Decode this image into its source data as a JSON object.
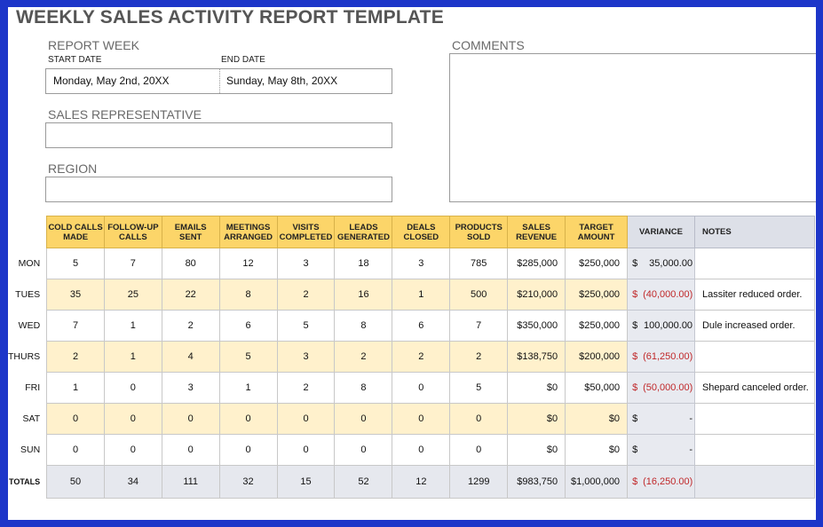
{
  "title": "WEEKLY SALES ACTIVITY REPORT TEMPLATE",
  "report_week": {
    "label": "REPORT WEEK",
    "start_label": "START DATE",
    "end_label": "END DATE",
    "start_value": "Monday, May 2nd, 20XX",
    "end_value": "Sunday, May 8th, 20XX"
  },
  "sales_rep": {
    "label": "SALES REPRESENTATIVE",
    "value": ""
  },
  "region": {
    "label": "REGION",
    "value": ""
  },
  "comments": {
    "label": "COMMENTS",
    "value": ""
  },
  "table": {
    "headers": {
      "cold_calls": "COLD CALLS MADE",
      "follow_up": "FOLLOW-UP CALLS",
      "emails": "EMAILS SENT",
      "meetings": "MEETINGS ARRANGED",
      "visits": "VISITS COMPLETED",
      "leads": "LEADS GENERATED",
      "deals": "DEALS CLOSED",
      "products": "PRODUCTS SOLD",
      "revenue": "SALES REVENUE",
      "target": "TARGET AMOUNT",
      "variance": "VARIANCE",
      "notes": "NOTES"
    },
    "rows": [
      {
        "day": "MON",
        "cold_calls": "5",
        "follow_up": "7",
        "emails": "80",
        "meetings": "12",
        "visits": "3",
        "leads": "18",
        "deals": "3",
        "products": "785",
        "revenue": "$285,000",
        "target": "$250,000",
        "var_cur": "$",
        "var_amt": "35,000.00",
        "negative": false,
        "notes": ""
      },
      {
        "day": "TUES",
        "cold_calls": "35",
        "follow_up": "25",
        "emails": "22",
        "meetings": "8",
        "visits": "2",
        "leads": "16",
        "deals": "1",
        "products": "500",
        "revenue": "$210,000",
        "target": "$250,000",
        "var_cur": "$",
        "var_amt": "(40,000.00)",
        "negative": true,
        "notes": "Lassiter reduced order."
      },
      {
        "day": "WED",
        "cold_calls": "7",
        "follow_up": "1",
        "emails": "2",
        "meetings": "6",
        "visits": "5",
        "leads": "8",
        "deals": "6",
        "products": "7",
        "revenue": "$350,000",
        "target": "$250,000",
        "var_cur": "$",
        "var_amt": "100,000.00",
        "negative": false,
        "notes": "Dule increased order."
      },
      {
        "day": "THURS",
        "cold_calls": "2",
        "follow_up": "1",
        "emails": "4",
        "meetings": "5",
        "visits": "3",
        "leads": "2",
        "deals": "2",
        "products": "2",
        "revenue": "$138,750",
        "target": "$200,000",
        "var_cur": "$",
        "var_amt": "(61,250.00)",
        "negative": true,
        "notes": ""
      },
      {
        "day": "FRI",
        "cold_calls": "1",
        "follow_up": "0",
        "emails": "3",
        "meetings": "1",
        "visits": "2",
        "leads": "8",
        "deals": "0",
        "products": "5",
        "revenue": "$0",
        "target": "$50,000",
        "var_cur": "$",
        "var_amt": "(50,000.00)",
        "negative": true,
        "notes": "Shepard canceled order."
      },
      {
        "day": "SAT",
        "cold_calls": "0",
        "follow_up": "0",
        "emails": "0",
        "meetings": "0",
        "visits": "0",
        "leads": "0",
        "deals": "0",
        "products": "0",
        "revenue": "$0",
        "target": "$0",
        "var_cur": "$",
        "var_amt": "-",
        "negative": false,
        "notes": ""
      },
      {
        "day": "SUN",
        "cold_calls": "0",
        "follow_up": "0",
        "emails": "0",
        "meetings": "0",
        "visits": "0",
        "leads": "0",
        "deals": "0",
        "products": "0",
        "revenue": "$0",
        "target": "$0",
        "var_cur": "$",
        "var_amt": "-",
        "negative": false,
        "notes": ""
      }
    ],
    "totals": {
      "day": "TOTALS",
      "cold_calls": "50",
      "follow_up": "34",
      "emails": "111",
      "meetings": "32",
      "visits": "15",
      "leads": "52",
      "deals": "12",
      "products": "1299",
      "revenue": "$983,750",
      "target": "$1,000,000",
      "var_cur": "$",
      "var_amt": "(16,250.00)",
      "negative": true,
      "notes": ""
    }
  },
  "colors": {
    "frame": "#1d36c9",
    "header_fill": "#fcd569",
    "alt_row_fill": "#fff1cc",
    "variance_fill": "#e8eaf0",
    "negative_text": "#c0282a"
  }
}
